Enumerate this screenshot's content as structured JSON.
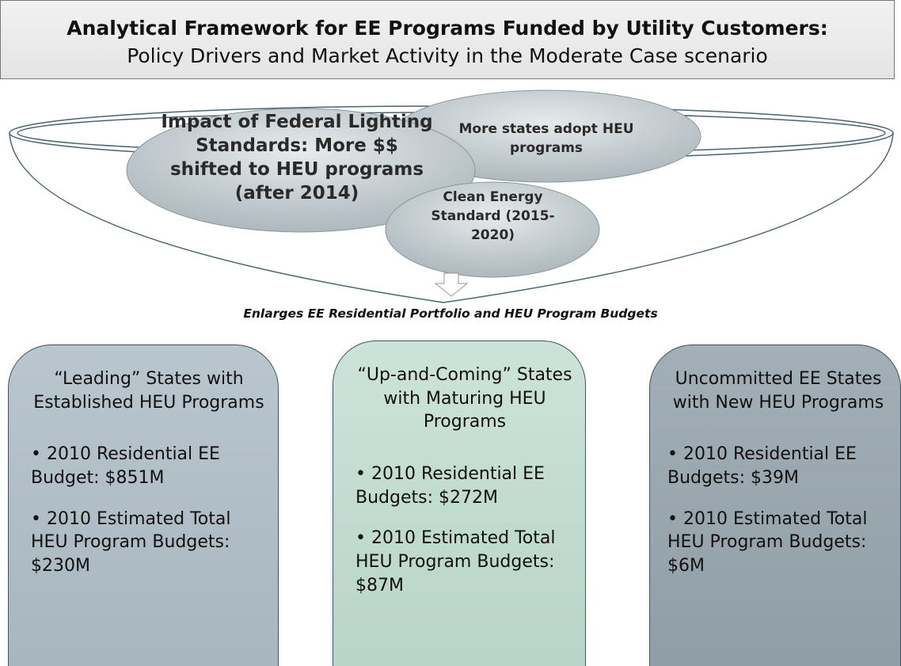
{
  "header": {
    "title": "Analytical Framework for EE Programs Funded by Utility Customers:",
    "subtitle": "Policy Drivers and Market Activity in the Moderate Case scenario"
  },
  "drivers": [
    {
      "label": "Impact of Federal Lighting Standards: More $$ shifted to HEU programs (after 2014)"
    },
    {
      "label": "More states adopt HEU programs"
    },
    {
      "label": "Clean Energy Standard (2015-2020)"
    }
  ],
  "caption": "Enlarges EE Residential Portfolio and HEU Program Budgets",
  "groups": [
    {
      "heading": "“Leading” States with Established HEU Programs",
      "bullets": [
        "2010 Residential EE Budget: $851M",
        "2010 Estimated Total HEU Program Budgets: $230M"
      ]
    },
    {
      "heading": "“Up-and-Coming” States with Maturing HEU Programs",
      "bullets": [
        "2010 Residential EE Budgets: $272M",
        "2010 Estimated Total HEU Program Budgets: $87M"
      ]
    },
    {
      "heading": "Uncommitted EE States with New HEU Programs",
      "bullets": [
        "2010 Residential EE Budgets: $39M",
        "2010 Estimated Total HEU Program Budgets: $6M"
      ]
    }
  ]
}
